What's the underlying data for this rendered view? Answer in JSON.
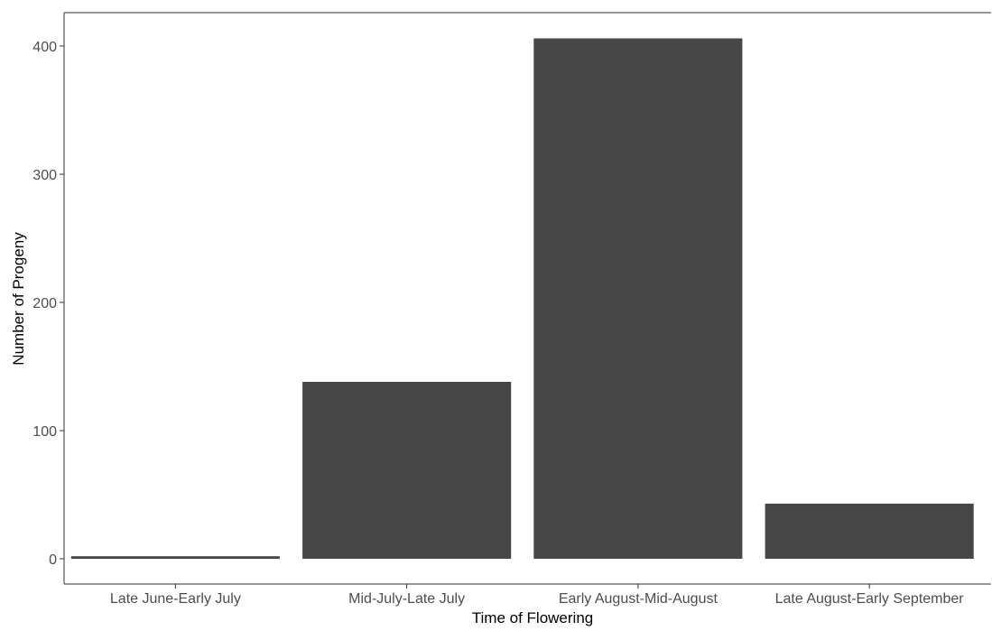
{
  "chart_data": {
    "type": "bar",
    "title": "",
    "xlabel": "Time of Flowering",
    "ylabel": "Number of Progeny",
    "categories": [
      "Late June-Early July",
      "Mid-July-Late July",
      "Early August-Mid-August",
      "Late August-Early September"
    ],
    "values": [
      2,
      138,
      406,
      43
    ],
    "ylim": [
      0,
      420
    ],
    "yticks": [
      0,
      100,
      200,
      300,
      400
    ],
    "ytick_labels": [
      "0",
      "100",
      "200",
      "300",
      "400"
    ],
    "grid": false,
    "legend": "none",
    "colors": {
      "bar": "#474747",
      "axis": "#333333",
      "tick_label": "#4d4d4d",
      "axis_title": "#000000",
      "background": "#ffffff"
    }
  }
}
